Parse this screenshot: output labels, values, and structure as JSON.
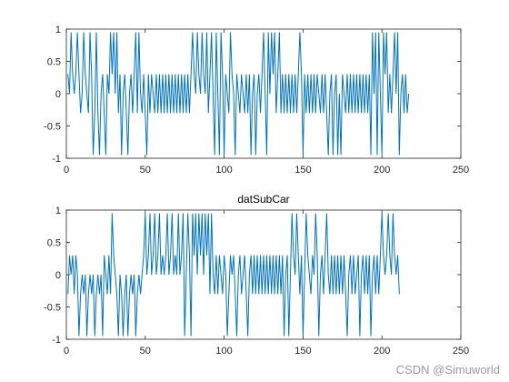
{
  "watermark": "CSDN @Simuworld",
  "colors": {
    "line": "#0072BD",
    "axis": "#262626",
    "background": "#ffffff"
  },
  "chart_data": [
    {
      "type": "line",
      "title": "",
      "xlabel": "",
      "ylabel": "",
      "xlim": [
        0,
        250
      ],
      "ylim": [
        -1,
        1
      ],
      "xticks": [
        0,
        50,
        100,
        150,
        200,
        250
      ],
      "yticks": [
        -1,
        -0.5,
        0,
        0.5,
        1
      ],
      "xtick_labels": [
        "0",
        "50",
        "100",
        "150",
        "200",
        "250"
      ],
      "ytick_labels": [
        "-1",
        "-0.5",
        "0",
        "0.5",
        "1"
      ],
      "grid": false,
      "x_start": 1,
      "series": [
        {
          "values": [
            0.3,
            0,
            0.95,
            0.3,
            0,
            0.3,
            0.95,
            0.3,
            -0.3,
            0,
            0.95,
            0.3,
            0,
            -0.3,
            0.95,
            0.3,
            -0.95,
            -0.3,
            0.95,
            -0.3,
            -0.95,
            0,
            0.3,
            -0.3,
            -0.95,
            0.3,
            0,
            0.95,
            0.3,
            0.95,
            0,
            0.95,
            -0.3,
            0.3,
            -0.95,
            0,
            0.3,
            -0.3,
            -0.95,
            0,
            0.3,
            -0.3,
            0.3,
            0.95,
            -0.3,
            0.95,
            0,
            -0.3,
            0.3,
            -0.3,
            -0.95,
            0.3,
            -0.3,
            0.3,
            0,
            -0.3,
            0.3,
            -0.3,
            0.3,
            -0.3,
            0.3,
            -0.3,
            0.3,
            -0.3,
            0.3,
            -0.3,
            0.3,
            -0.3,
            0.3,
            -0.3,
            0.3,
            -0.3,
            0.3,
            -0.3,
            0.3,
            -0.3,
            0.3,
            -0.3,
            0.3,
            0.95,
            0.3,
            0,
            0.95,
            0.3,
            0,
            0.95,
            0.3,
            0,
            0.95,
            -0.3,
            0.3,
            0.95,
            0,
            -0.95,
            0.95,
            0,
            -0.95,
            0.95,
            0.3,
            -0.95,
            0.3,
            0,
            -0.3,
            0.95,
            0.3,
            0,
            -0.95,
            0.3,
            0,
            -0.3,
            0.3,
            0,
            -0.3,
            0.3,
            -0.3,
            0.3,
            -0.95,
            0,
            0.3,
            -0.95,
            0,
            0.3,
            -0.3,
            0.3,
            0.95,
            0,
            -0.95,
            0.95,
            0,
            0.95,
            0.3,
            0.95,
            -0.3,
            0.3,
            0.95,
            -0.3,
            0.3,
            -0.3,
            0.3,
            -0.3,
            0.3,
            -0.3,
            0.3,
            -0.3,
            0.3,
            -0.3,
            0.3,
            0.95,
            0.3,
            -0.95,
            0.3,
            -0.3,
            0.3,
            -0.3,
            0.3,
            -0.3,
            0.3,
            -0.3,
            0.3,
            0,
            -0.3,
            0.3,
            -0.3,
            0.3,
            -0.3,
            -0.95,
            0,
            0.3,
            -0.95,
            0,
            0.3,
            -0.95,
            0,
            -0.95,
            0.3,
            0,
            -0.3,
            0.3,
            -0.3,
            0.3,
            -0.3,
            0.3,
            -0.3,
            0.3,
            -0.3,
            0.3,
            -0.3,
            0.3,
            -0.3,
            0.3,
            -0.3,
            0.3,
            -0.95,
            0.95,
            0,
            0.95,
            -0.95,
            0.95,
            0,
            -0.95,
            0.95,
            0.3,
            0.95,
            -0.3,
            0.3,
            -0.3,
            0.3,
            0.95,
            0,
            0.95,
            -0.95,
            0,
            0.3,
            -0.3,
            0.3,
            -0.3,
            0
          ]
        }
      ]
    },
    {
      "type": "line",
      "title": "datSubCar",
      "xlabel": "",
      "ylabel": "",
      "xlim": [
        0,
        250
      ],
      "ylim": [
        -1,
        1
      ],
      "xticks": [
        0,
        50,
        100,
        150,
        200,
        250
      ],
      "yticks": [
        -1,
        -0.5,
        0,
        0.5,
        1
      ],
      "xtick_labels": [
        "0",
        "50",
        "100",
        "150",
        "200",
        "250"
      ],
      "ytick_labels": [
        "-1",
        "-0.5",
        "0",
        "0.5",
        "1"
      ],
      "grid": false,
      "x_start": 1,
      "series": [
        {
          "values": [
            -0.3,
            0.3,
            0,
            0.3,
            -0.3,
            0.3,
            0,
            -0.95,
            -0.3,
            0,
            -0.3,
            0,
            -0.95,
            -0.3,
            0,
            -0.3,
            0,
            -0.95,
            -0.3,
            0,
            -0.3,
            0,
            -0.95,
            0.3,
            0,
            -0.3,
            0.3,
            -0.3,
            0.95,
            0.3,
            0,
            -0.3,
            -0.95,
            0,
            -0.3,
            -0.95,
            -0.3,
            0,
            -0.95,
            -0.3,
            0,
            -0.3,
            0,
            -0.95,
            -0.3,
            0,
            -0.3,
            0,
            0.3,
            0.95,
            0,
            0.3,
            0.95,
            0,
            0.3,
            0.95,
            0,
            0.3,
            0.95,
            0,
            0.3,
            0,
            0.3,
            0.95,
            0,
            0.3,
            0.95,
            0,
            0.3,
            0,
            0.95,
            0,
            0.3,
            0.95,
            -0.95,
            0,
            0.95,
            0.3,
            -0.95,
            0.95,
            0.3,
            0.95,
            0,
            0.95,
            0.3,
            0.95,
            0,
            0.95,
            0.3,
            0.95,
            -0.3,
            0.95,
            0,
            -0.3,
            0.3,
            -0.3,
            0.3,
            0,
            -0.3,
            0.3,
            0,
            -0.95,
            -0.3,
            0.3,
            0,
            0.3,
            -0.3,
            -0.95,
            0,
            0.3,
            -0.3,
            0,
            0.3,
            -0.3,
            -0.95,
            0,
            0.3,
            -0.3,
            0.3,
            -0.3,
            0.3,
            -0.3,
            0.3,
            -0.3,
            0.3,
            -0.3,
            0.3,
            -0.3,
            0.3,
            -0.3,
            0.3,
            -0.3,
            0.3,
            -0.3,
            0.3,
            -0.3,
            0.3,
            -0.95,
            0,
            0.3,
            -0.95,
            0,
            0.95,
            0.3,
            0,
            0.95,
            0.3,
            -0.3,
            0.3,
            -0.95,
            0,
            0.95,
            0.3,
            0,
            -0.3,
            0.3,
            0,
            0.95,
            0.3,
            -0.95,
            0,
            0.3,
            -0.3,
            0.3,
            0.95,
            0,
            -0.3,
            0.3,
            -0.3,
            0.3,
            -0.3,
            0.3,
            -0.3,
            0.3,
            -0.3,
            0.3,
            -0.3,
            -0.95,
            0,
            0.3,
            -0.3,
            0.3,
            -0.3,
            0,
            0.3,
            -0.95,
            0,
            0.3,
            -0.3,
            0.3,
            -0.3,
            0.3,
            -0.95,
            0,
            0.3,
            -0.3,
            0.3,
            -0.3,
            0.3,
            0.95,
            0.3,
            0,
            0.3,
            0.95,
            0.3,
            0,
            0.95,
            0.3,
            0,
            0.3,
            -0.3
          ]
        }
      ]
    }
  ]
}
